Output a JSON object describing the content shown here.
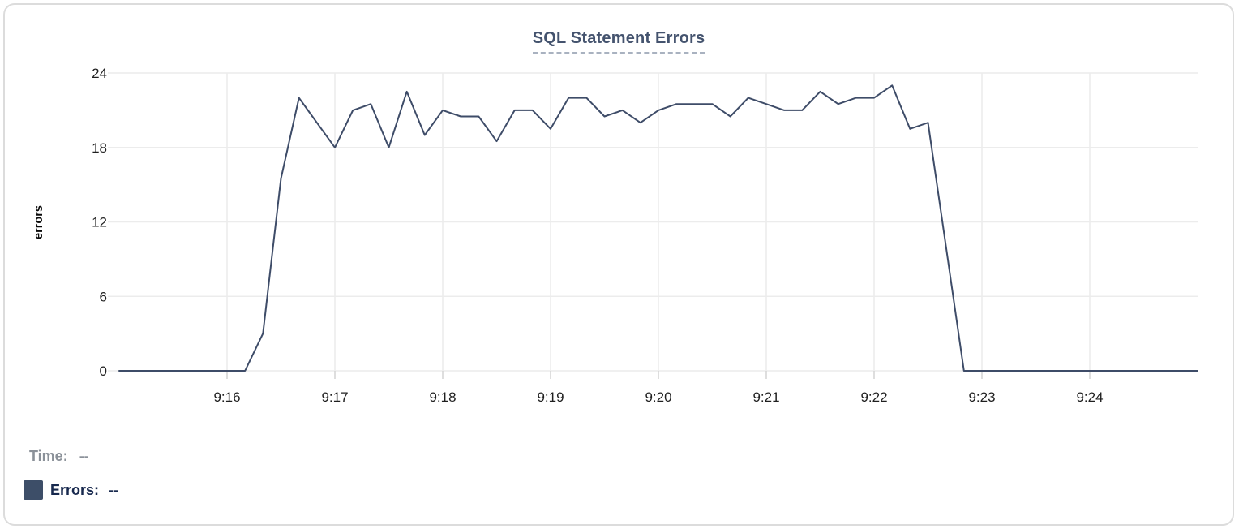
{
  "chart_data": {
    "type": "line",
    "title": "SQL Statement Errors",
    "xlabel": "",
    "ylabel": "errors",
    "ylim": [
      0,
      24
    ],
    "yticks": [
      0,
      6,
      12,
      18,
      24
    ],
    "xticks": [
      "9:16",
      "9:17",
      "9:18",
      "9:19",
      "9:20",
      "9:21",
      "9:22",
      "9:23",
      "9:24"
    ],
    "x_range": [
      "9:15:00",
      "9:25:00"
    ],
    "grid": true,
    "legend_position": "bottom-left",
    "series": [
      {
        "name": "Errors",
        "color": "#3e4c68",
        "times": [
          "9:15:00",
          "9:15:10",
          "9:15:20",
          "9:15:30",
          "9:15:40",
          "9:15:50",
          "9:16:00",
          "9:16:10",
          "9:16:20",
          "9:16:30",
          "9:16:40",
          "9:16:50",
          "9:17:00",
          "9:17:10",
          "9:17:20",
          "9:17:30",
          "9:17:40",
          "9:17:50",
          "9:18:00",
          "9:18:10",
          "9:18:20",
          "9:18:30",
          "9:18:40",
          "9:18:50",
          "9:19:00",
          "9:19:10",
          "9:19:20",
          "9:19:30",
          "9:19:40",
          "9:19:50",
          "9:20:00",
          "9:20:10",
          "9:20:20",
          "9:20:30",
          "9:20:40",
          "9:20:50",
          "9:21:00",
          "9:21:10",
          "9:21:20",
          "9:21:30",
          "9:21:40",
          "9:21:50",
          "9:22:00",
          "9:22:10",
          "9:22:20",
          "9:22:30",
          "9:22:40",
          "9:22:50",
          "9:23:00",
          "9:23:10",
          "9:23:20",
          "9:23:30",
          "9:23:40",
          "9:23:50",
          "9:24:00",
          "9:24:10",
          "9:24:20",
          "9:24:30",
          "9:24:40",
          "9:24:50",
          "9:25:00"
        ],
        "values": [
          0,
          0,
          0,
          0,
          0,
          0,
          0,
          0,
          3,
          15.5,
          22,
          20,
          18,
          21,
          21.5,
          18,
          22.5,
          19,
          21,
          20.5,
          20.5,
          18.5,
          21,
          21,
          19.5,
          22,
          22,
          20.5,
          21,
          20,
          21,
          21.5,
          21.5,
          21.5,
          20.5,
          22,
          21.5,
          21,
          21,
          22.5,
          21.5,
          22,
          22,
          23,
          19.5,
          20,
          10,
          0,
          0,
          0,
          0,
          0,
          0,
          0,
          0,
          0,
          0,
          0,
          0,
          0,
          0
        ]
      }
    ]
  },
  "legend": {
    "time_label": "Time:",
    "time_value": "--",
    "errors_label": "Errors:",
    "errors_value": "--",
    "swatch_color": "#3d4e68"
  },
  "colors": {
    "line": "#3e4c68",
    "title": "#44536e",
    "title_underline": "#a9b2c0",
    "axis_text": "#1f1f1f",
    "ylabel_text": "#0a0a0a",
    "grid": "#ececec",
    "tick_mark": "#d2d2d2",
    "card_border": "#dcdcdc",
    "time_label": "#8b9199",
    "errors_label": "#18294e"
  }
}
